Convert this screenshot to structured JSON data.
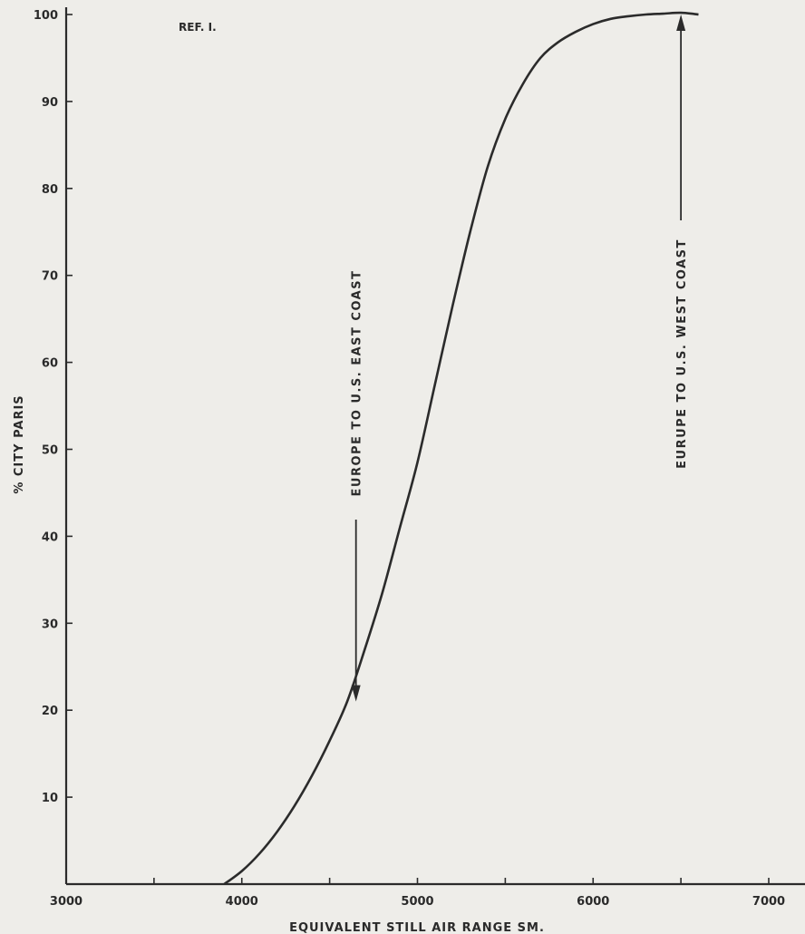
{
  "chart_data": {
    "type": "line",
    "title": "",
    "reference": "REF. I.",
    "xlabel": "EQUIVALENT STILL AIR RANGE SM.",
    "ylabel": "% CITY PARIS",
    "xlim": [
      3000,
      7000
    ],
    "ylim": [
      0,
      100
    ],
    "x_ticks": [
      "3000",
      "4000",
      "5000",
      "6000",
      "7000"
    ],
    "y_ticks": [
      "10",
      "20",
      "30",
      "40",
      "50",
      "60",
      "70",
      "80",
      "90",
      "100"
    ],
    "grid": false,
    "series": [
      {
        "x": [
          3900,
          4000,
          4100,
          4200,
          4300,
          4400,
          4500,
          4600,
          4700,
          4800,
          4900,
          5000,
          5100,
          5200,
          5300,
          5400,
          5500,
          5600,
          5700,
          5800,
          5900,
          6000,
          6100,
          6200,
          6300,
          6400,
          6500,
          6600
        ],
        "y": [
          0,
          1.5,
          3.5,
          6,
          9,
          12.5,
          16.5,
          21,
          27,
          33.5,
          41,
          48.5,
          57.5,
          66.5,
          75,
          82.5,
          88,
          92,
          95,
          96.8,
          98,
          98.9,
          99.5,
          99.8,
          100,
          100.1,
          100.2,
          100
        ]
      }
    ],
    "annotations": [
      {
        "text": "EUROPE TO U.S. EAST COAST",
        "x": 4650,
        "y": 21,
        "arrow": "down"
      },
      {
        "text": "EURUPE TO U.S. WEST COAST",
        "x": 6500,
        "y": 100,
        "arrow": "up"
      }
    ]
  }
}
